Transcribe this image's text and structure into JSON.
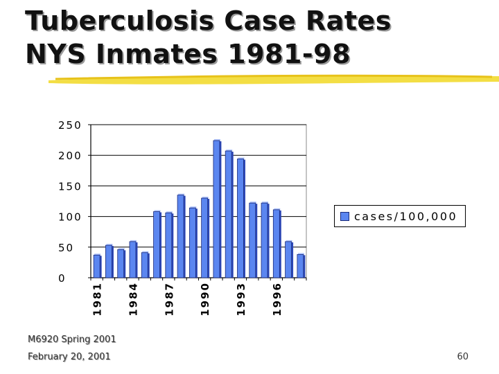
{
  "slide": {
    "title_line1": "Tuberculosis Case Rates",
    "title_line2": "NYS Inmates 1981-98",
    "footer_course": "M6920 Spring 2001",
    "footer_date": "February 20, 2001",
    "page_number": "60"
  },
  "colors": {
    "bar": "#5b86f0",
    "bar_dark": "#2c47b8",
    "underline": "#f2dc3a"
  },
  "chart_data": {
    "type": "bar",
    "categories": [
      "1981",
      "1982",
      "1983",
      "1984",
      "1985",
      "1986",
      "1987",
      "1988",
      "1989",
      "1990",
      "1991",
      "1992",
      "1993",
      "1994",
      "1995",
      "1996",
      "1997",
      "1998"
    ],
    "x_tick_labels": [
      "1981",
      "",
      "",
      "1984",
      "",
      "",
      "1987",
      "",
      "",
      "1990",
      "",
      "",
      "1993",
      "",
      "",
      "1996",
      "",
      ""
    ],
    "series": [
      {
        "name": "cases/100,000",
        "values": [
          37,
          53,
          46,
          59,
          41,
          108,
          106,
          135,
          114,
          130,
          224,
          207,
          194,
          122,
          122,
          111,
          59,
          38
        ]
      }
    ],
    "title": "",
    "xlabel": "",
    "ylabel": "",
    "ylim": [
      0,
      250
    ],
    "yticks": [
      0,
      50,
      100,
      150,
      200,
      250
    ],
    "grid": true,
    "legend": "right"
  }
}
